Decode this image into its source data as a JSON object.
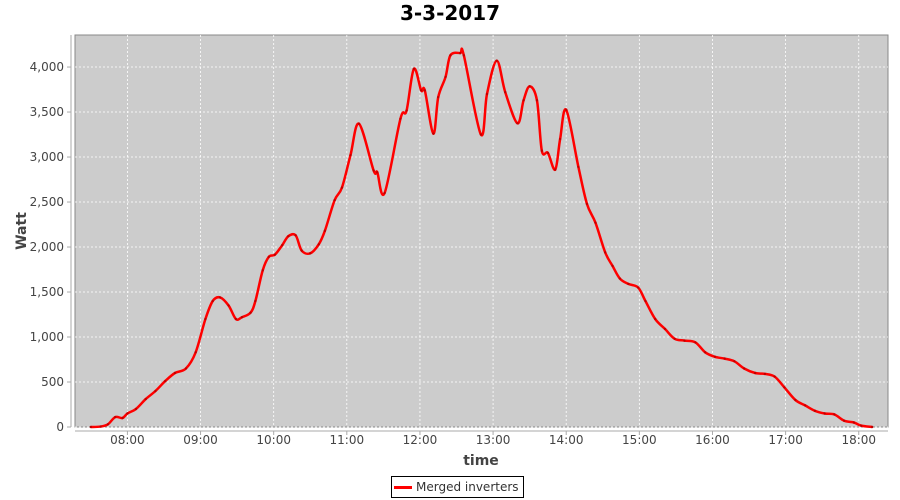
{
  "chart_data": {
    "type": "line",
    "title": "3-3-2017",
    "xlabel": "time",
    "ylabel": "Watt",
    "xlim": [
      "07:17",
      "18:24"
    ],
    "ylim": [
      0,
      4356
    ],
    "x_ticks": [
      "08:00",
      "09:00",
      "10:00",
      "11:00",
      "12:00",
      "13:00",
      "14:00",
      "15:00",
      "16:00",
      "17:00",
      "18:00"
    ],
    "y_ticks": [
      "0",
      "500",
      "1,000",
      "1,500",
      "2,000",
      "2,500",
      "3,000",
      "3,500",
      "4,000"
    ],
    "y_tick_values": [
      0,
      500,
      1000,
      1500,
      2000,
      2500,
      3000,
      3500,
      4000
    ],
    "grid": true,
    "legend_position": "bottom",
    "colors": {
      "series": "#ff0000",
      "plot_background": "#cccccc",
      "grid": "#ffffff"
    },
    "series": [
      {
        "name": "Merged inverters",
        "x": [
          "07:30",
          "07:38",
          "07:44",
          "07:50",
          "07:56",
          "08:00",
          "08:07",
          "08:15",
          "08:23",
          "08:31",
          "08:39",
          "08:48",
          "08:56",
          "09:04",
          "09:10",
          "09:16",
          "09:23",
          "09:29",
          "09:34",
          "09:41",
          "09:45",
          "09:51",
          "09:56",
          "10:01",
          "10:07",
          "10:12",
          "10:18",
          "10:23",
          "10:30",
          "10:37",
          "10:42",
          "10:50",
          "10:56",
          "11:03",
          "11:10",
          "11:22",
          "11:25",
          "11:31",
          "11:44",
          "11:49",
          "11:55",
          "12:01",
          "12:04",
          "12:11",
          "12:15",
          "12:21",
          "12:25",
          "12:33",
          "12:36",
          "12:50",
          "12:55",
          "13:03",
          "13:10",
          "13:20",
          "13:25",
          "13:30",
          "13:36",
          "13:40",
          "13:45",
          "13:51",
          "13:55",
          "14:00",
          "14:10",
          "14:17",
          "14:24",
          "14:32",
          "14:38",
          "14:44",
          "14:51",
          "14:59",
          "15:05",
          "15:13",
          "15:21",
          "15:29",
          "15:37",
          "15:46",
          "15:54",
          "16:02",
          "16:10",
          "16:18",
          "16:26",
          "16:35",
          "16:43",
          "16:51",
          "16:59",
          "17:08",
          "17:16",
          "17:24",
          "17:32",
          "17:40",
          "17:48",
          "17:56",
          "18:02",
          "18:11"
        ],
        "y": [
          0,
          5,
          30,
          110,
          100,
          150,
          200,
          310,
          400,
          510,
          600,
          650,
          830,
          1200,
          1400,
          1440,
          1350,
          1200,
          1220,
          1270,
          1400,
          1740,
          1890,
          1915,
          2020,
          2120,
          2130,
          1960,
          1930,
          2030,
          2180,
          2520,
          2660,
          3020,
          3370,
          2850,
          2830,
          2600,
          3425,
          3515,
          3980,
          3740,
          3740,
          3260,
          3665,
          3890,
          4130,
          4155,
          4130,
          3250,
          3700,
          4070,
          3720,
          3375,
          3630,
          3785,
          3630,
          3070,
          3045,
          2860,
          3200,
          3525,
          2890,
          2480,
          2270,
          1940,
          1790,
          1650,
          1590,
          1550,
          1400,
          1200,
          1090,
          980,
          960,
          940,
          830,
          780,
          760,
          730,
          650,
          600,
          590,
          560,
          440,
          300,
          240,
          180,
          150,
          140,
          70,
          50,
          15,
          0
        ]
      }
    ]
  }
}
